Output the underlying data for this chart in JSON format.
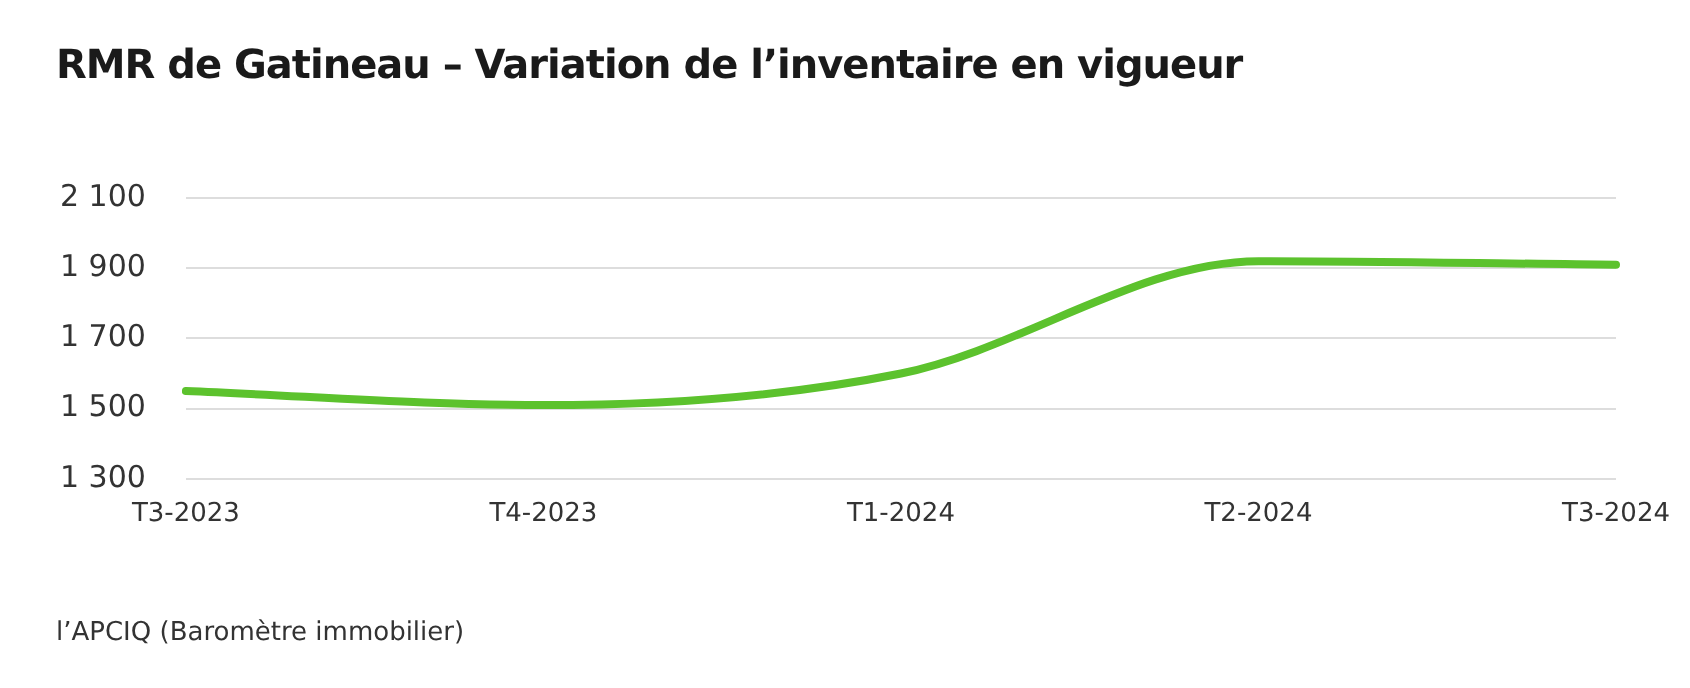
{
  "chart_data": {
    "type": "line",
    "title": "RMR de Gatineau – Variation de l’inventaire en vigueur",
    "categories": [
      "T3-2023",
      "T4-2023",
      "T1-2024",
      "T2-2024",
      "T3-2024"
    ],
    "series": [
      {
        "color": "#5cc22d",
        "values": [
          1550,
          1510,
          1600,
          1920,
          1910
        ]
      }
    ],
    "ylim": [
      1300,
      2100
    ],
    "yticks": [
      {
        "value": 1300,
        "label": "1 300"
      },
      {
        "value": 1500,
        "label": "1 500"
      },
      {
        "value": 1700,
        "label": "1 700"
      },
      {
        "value": 1900,
        "label": "1 900"
      },
      {
        "value": 2100,
        "label": "2 100"
      }
    ],
    "grid": "y",
    "legend": false,
    "marker": "none",
    "line_style": "solid",
    "annotations": [
      "l’APCIQ (Baromètre immobilier)"
    ]
  }
}
